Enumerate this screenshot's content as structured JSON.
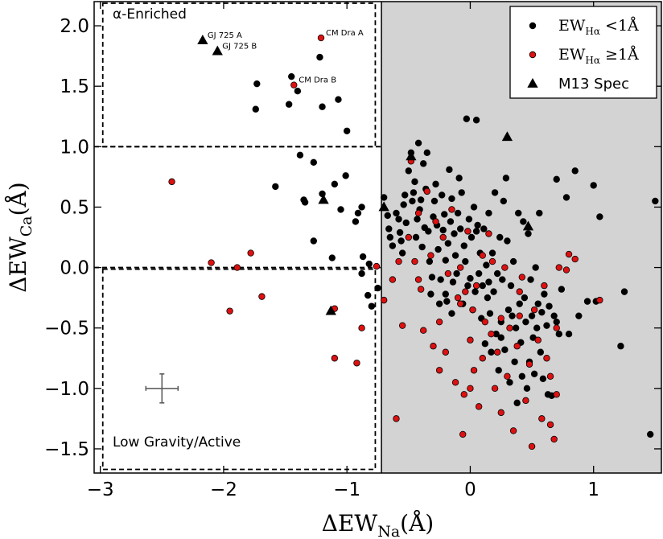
{
  "colors": {
    "inactive": "#000000",
    "active": "#dd1111",
    "shaded_region": "#d3d3d3",
    "frame": "#000000"
  },
  "chart_data": {
    "type": "scatter",
    "xlabel": {
      "main": "ΔEW",
      "sub": "Na",
      "unit": "(Å)"
    },
    "ylabel": {
      "main": "ΔEW",
      "sub": "Ca",
      "unit": "(Å)"
    },
    "xlim": [
      -3.05,
      1.55
    ],
    "ylim": [
      -1.7,
      2.2
    ],
    "xticks": [
      -3,
      -2,
      -1,
      0,
      1
    ],
    "xtick_labels": [
      "−3",
      "−2",
      "−1",
      "0",
      "1"
    ],
    "yticks": [
      -1.5,
      -1.0,
      -0.5,
      0.0,
      0.5,
      1.0,
      1.5,
      2.0
    ],
    "ytick_labels": [
      "−1.5",
      "−1.0",
      "−0.5",
      "0.0",
      "0.5",
      "1.0",
      "1.5",
      "2.0"
    ],
    "shaded_region": {
      "x_min": -0.72
    },
    "boxes": [
      {
        "x": [
          -2.98,
          -0.77
        ],
        "y": [
          1.0,
          2.2
        ]
      },
      {
        "x": [
          -2.98,
          -0.77
        ],
        "y": [
          -1.67,
          0.0
        ]
      }
    ],
    "hlines": [
      1.0,
      0.0
    ],
    "region_labels": [
      {
        "text": "α-Enriched",
        "x": -2.9,
        "y": 2.06
      },
      {
        "text": "Low Gravity/Active",
        "x": -2.9,
        "y": -1.48
      }
    ],
    "error_bar": {
      "x": -2.5,
      "y": -1.0,
      "xerr": 0.15,
      "yerr": 0.12
    },
    "legend": {
      "location": "top-right",
      "entries": [
        {
          "label_main": "EW",
          "label_sub": "Hα",
          "label_rest": " <1Å",
          "marker": "circle",
          "color": "#000000"
        },
        {
          "label_main": "EW",
          "label_sub": "Hα",
          "label_rest": " ≥1Å",
          "marker": "circle",
          "color": "#dd1111"
        },
        {
          "label_main": "M13 Spec",
          "label_sub": "",
          "label_rest": "",
          "marker": "triangle",
          "color": "#000000"
        }
      ]
    },
    "series": [
      {
        "name": "EW_Halpha < 1 A",
        "marker": "circle",
        "color": "#000000",
        "points": [
          [
            -1.22,
            1.74
          ],
          [
            -1.45,
            1.58
          ],
          [
            -1.73,
            1.52
          ],
          [
            -1.4,
            1.46
          ],
          [
            -1.47,
            1.35
          ],
          [
            -1.74,
            1.31
          ],
          [
            -1.2,
            1.33
          ],
          [
            -1.07,
            1.39
          ],
          [
            -1.0,
            1.13
          ],
          [
            -1.27,
            0.87
          ],
          [
            -1.38,
            0.93
          ],
          [
            -1.01,
            0.76
          ],
          [
            -1.1,
            0.69
          ],
          [
            -1.2,
            0.61
          ],
          [
            -1.58,
            0.67
          ],
          [
            -1.35,
            0.56
          ],
          [
            -1.34,
            0.54
          ],
          [
            -1.05,
            0.48
          ],
          [
            -0.88,
            0.5
          ],
          [
            -0.91,
            0.45
          ],
          [
            -0.93,
            0.38
          ],
          [
            -1.27,
            0.22
          ],
          [
            -1.12,
            0.08
          ],
          [
            -0.87,
            0.09
          ],
          [
            -0.82,
            0.03
          ],
          [
            -0.88,
            -0.05
          ],
          [
            -0.83,
            -0.23
          ],
          [
            -0.8,
            -0.32
          ],
          [
            -0.75,
            -0.17
          ],
          [
            -0.7,
            0.58
          ],
          [
            -0.67,
            0.43
          ],
          [
            -0.66,
            0.32
          ],
          [
            -0.65,
            0.25
          ],
          [
            -0.63,
            0.18
          ],
          [
            -0.6,
            0.45
          ],
          [
            -0.58,
            0.4
          ],
          [
            -0.57,
            0.29
          ],
          [
            -0.56,
            0.22
          ],
          [
            -0.55,
            0.12
          ],
          [
            -0.54,
            0.52
          ],
          [
            -0.53,
            0.6
          ],
          [
            -0.52,
            0.37
          ],
          [
            -0.5,
            0.8
          ],
          [
            -0.48,
            0.95
          ],
          [
            -0.47,
            0.55
          ],
          [
            -0.46,
            0.62
          ],
          [
            -0.45,
            0.71
          ],
          [
            -0.44,
            0.25
          ],
          [
            -0.43,
            0.4
          ],
          [
            -0.42,
            1.03
          ],
          [
            -0.41,
            0.48
          ],
          [
            -0.4,
            0.56
          ],
          [
            -0.39,
            0.17
          ],
          [
            -0.38,
            0.86
          ],
          [
            -0.37,
            0.33
          ],
          [
            -0.36,
            0.65
          ],
          [
            -0.35,
            0.95
          ],
          [
            -0.34,
            0.3
          ],
          [
            -0.33,
            0.05
          ],
          [
            -0.32,
            -0.22
          ],
          [
            -0.31,
            -0.08
          ],
          [
            -0.3,
            0.42
          ],
          [
            -0.29,
            0.55
          ],
          [
            -0.28,
            0.69
          ],
          [
            -0.27,
            0.35
          ],
          [
            -0.26,
            0.15
          ],
          [
            -0.25,
            -0.3
          ],
          [
            -0.24,
            -0.1
          ],
          [
            -0.23,
            0.6
          ],
          [
            -0.22,
            0.31
          ],
          [
            -0.21,
            0.44
          ],
          [
            -0.2,
            0.06
          ],
          [
            -0.19,
            -0.28
          ],
          [
            -0.18,
            0.2
          ],
          [
            -0.17,
            0.81
          ],
          [
            -0.16,
            0.38
          ],
          [
            -0.15,
            0.57
          ],
          [
            -0.14,
            -0.12
          ],
          [
            -0.13,
            0.28
          ],
          [
            -0.12,
            0.1
          ],
          [
            -0.11,
            -0.05
          ],
          [
            -0.1,
            0.45
          ],
          [
            -0.09,
            0.74
          ],
          [
            -0.08,
            0.32
          ],
          [
            -0.07,
            0.62
          ],
          [
            -0.06,
            -0.3
          ],
          [
            -0.05,
            0.18
          ],
          [
            -0.04,
            0.05
          ],
          [
            -0.03,
            1.23
          ],
          [
            -0.02,
            -0.15
          ],
          [
            -0.01,
            0.4
          ],
          [
            0.0,
            -0.09
          ],
          [
            0.01,
            0.25
          ],
          [
            0.02,
            -0.35
          ],
          [
            0.03,
            0.5
          ],
          [
            0.04,
            -0.2
          ],
          [
            0.05,
            1.22
          ],
          [
            0.06,
            0.35
          ],
          [
            0.07,
            -0.05
          ],
          [
            0.08,
            0.12
          ],
          [
            0.09,
            -0.42
          ],
          [
            0.1,
            -0.15
          ],
          [
            0.11,
            0.32
          ],
          [
            0.12,
            -0.63
          ],
          [
            0.13,
            0.02
          ],
          [
            0.14,
            -0.25
          ],
          [
            0.15,
            0.45
          ],
          [
            0.16,
            -0.38
          ],
          [
            0.17,
            -0.7
          ],
          [
            0.18,
            0.12
          ],
          [
            0.19,
            -0.2
          ],
          [
            0.2,
            0.62
          ],
          [
            0.21,
            -0.55
          ],
          [
            0.22,
            -0.05
          ],
          [
            0.23,
            -0.85
          ],
          [
            0.24,
            0.25
          ],
          [
            0.25,
            -0.45
          ],
          [
            0.26,
            -0.1
          ],
          [
            0.27,
            0.55
          ],
          [
            0.28,
            -0.68
          ],
          [
            0.29,
            0.74
          ],
          [
            0.3,
            0.22
          ],
          [
            0.31,
            -0.35
          ],
          [
            0.32,
            -0.95
          ],
          [
            0.33,
            -0.15
          ],
          [
            0.34,
            -0.4
          ],
          [
            0.35,
            0.05
          ],
          [
            0.36,
            -0.78
          ],
          [
            0.37,
            -0.5
          ],
          [
            0.38,
            -1.12
          ],
          [
            0.39,
            0.45
          ],
          [
            0.4,
            -0.3
          ],
          [
            0.41,
            -0.62
          ],
          [
            0.42,
            -0.9
          ],
          [
            0.43,
            0.38
          ],
          [
            0.44,
            -0.25
          ],
          [
            0.45,
            -0.45
          ],
          [
            0.46,
            -1.0
          ],
          [
            0.47,
            0.28
          ],
          [
            0.48,
            -0.78
          ],
          [
            0.49,
            -0.1
          ],
          [
            0.5,
            -0.4
          ],
          [
            0.51,
            -0.58
          ],
          [
            0.52,
            -0.88
          ],
          [
            0.53,
            0.0
          ],
          [
            0.54,
            -0.5
          ],
          [
            0.55,
            -0.3
          ],
          [
            0.56,
            0.45
          ],
          [
            0.57,
            -0.7
          ],
          [
            0.58,
            -0.37
          ],
          [
            0.59,
            -0.92
          ],
          [
            0.6,
            -0.22
          ],
          [
            0.62,
            -0.48
          ],
          [
            0.63,
            -1.05
          ],
          [
            0.64,
            -0.32
          ],
          [
            0.66,
            -1.06
          ],
          [
            0.68,
            -0.4
          ],
          [
            0.7,
            0.73
          ],
          [
            0.72,
            -0.55
          ],
          [
            0.74,
            -0.18
          ],
          [
            0.78,
            0.58
          ],
          [
            0.8,
            -0.55
          ],
          [
            0.85,
            0.8
          ],
          [
            0.88,
            -0.4
          ],
          [
            0.95,
            -0.28
          ],
          [
            1.0,
            0.68
          ],
          [
            1.05,
            0.42
          ],
          [
            1.02,
            -0.28
          ],
          [
            1.22,
            -0.65
          ],
          [
            1.25,
            -0.2
          ],
          [
            1.46,
            -1.38
          ],
          [
            1.5,
            0.55
          ],
          [
            0.7,
            -0.45
          ],
          [
            0.15,
            -0.12
          ],
          [
            -0.15,
            -0.38
          ],
          [
            -0.2,
            -0.22
          ],
          [
            0.05,
            0.3
          ],
          [
            0.25,
            -0.58
          ]
        ]
      },
      {
        "name": "EW_Halpha >= 1 A",
        "marker": "circle",
        "color": "#dd1111",
        "points": [
          [
            -1.21,
            1.9
          ],
          [
            -1.43,
            1.51
          ],
          [
            -2.42,
            0.71
          ],
          [
            -2.1,
            0.04
          ],
          [
            -1.89,
            0.0
          ],
          [
            -1.78,
            0.12
          ],
          [
            -1.95,
            -0.36
          ],
          [
            -1.69,
            -0.24
          ],
          [
            -1.1,
            -0.34
          ],
          [
            -1.1,
            -0.75
          ],
          [
            -0.92,
            -0.79
          ],
          [
            -0.88,
            -0.5
          ],
          [
            -0.76,
            0.01
          ],
          [
            -0.7,
            -0.27
          ],
          [
            -0.63,
            -0.1
          ],
          [
            -0.6,
            -1.25
          ],
          [
            -0.58,
            0.05
          ],
          [
            -0.55,
            -0.48
          ],
          [
            -0.5,
            0.25
          ],
          [
            -0.48,
            0.88
          ],
          [
            -0.45,
            0.05
          ],
          [
            -0.42,
            0.45
          ],
          [
            -0.4,
            -0.18
          ],
          [
            -0.38,
            -0.52
          ],
          [
            -0.35,
            0.63
          ],
          [
            -0.32,
            0.1
          ],
          [
            -0.3,
            -0.65
          ],
          [
            -0.28,
            0.38
          ],
          [
            -0.25,
            -0.45
          ],
          [
            -0.22,
            0.25
          ],
          [
            -0.2,
            -0.7
          ],
          [
            -0.18,
            -0.05
          ],
          [
            -0.15,
            0.48
          ],
          [
            -0.12,
            -0.95
          ],
          [
            -0.1,
            -0.25
          ],
          [
            -0.08,
            0.0
          ],
          [
            -0.06,
            -1.38
          ],
          [
            -0.05,
            -1.05
          ],
          [
            -0.04,
            -0.2
          ],
          [
            -0.02,
            0.3
          ],
          [
            0.0,
            -0.6
          ],
          [
            0.02,
            -0.35
          ],
          [
            0.03,
            -0.85
          ],
          [
            0.05,
            -0.15
          ],
          [
            0.07,
            -1.15
          ],
          [
            0.1,
            0.1
          ],
          [
            0.12,
            -0.45
          ],
          [
            0.15,
            0.28
          ],
          [
            0.17,
            -0.55
          ],
          [
            0.2,
            -1.0
          ],
          [
            0.22,
            -0.7
          ],
          [
            0.25,
            -1.2
          ],
          [
            0.28,
            0.0
          ],
          [
            0.3,
            -0.9
          ],
          [
            0.32,
            -0.5
          ],
          [
            0.35,
            -1.35
          ],
          [
            0.38,
            -0.65
          ],
          [
            0.4,
            -0.2
          ],
          [
            0.42,
            -0.08
          ],
          [
            0.45,
            -1.1
          ],
          [
            0.48,
            -0.8
          ],
          [
            0.5,
            -1.48
          ],
          [
            0.52,
            -0.35
          ],
          [
            0.55,
            -0.6
          ],
          [
            0.58,
            -1.25
          ],
          [
            0.6,
            -0.15
          ],
          [
            0.62,
            -0.75
          ],
          [
            0.65,
            -1.3
          ],
          [
            0.68,
            -1.42
          ],
          [
            0.7,
            -0.5
          ],
          [
            0.72,
            0.0
          ],
          [
            0.78,
            -0.02
          ],
          [
            0.8,
            0.11
          ],
          [
            0.85,
            0.07
          ],
          [
            1.05,
            -0.27
          ],
          [
            0.25,
            -0.42
          ],
          [
            -0.25,
            -0.85
          ],
          [
            0.1,
            -0.75
          ],
          [
            0.0,
            -1.0
          ],
          [
            0.7,
            -1.05
          ],
          [
            0.65,
            -0.9
          ],
          [
            0.4,
            -0.4
          ],
          [
            0.18,
            0.05
          ],
          [
            -0.08,
            -0.3
          ],
          [
            -0.42,
            -0.1
          ]
        ]
      },
      {
        "name": "M13 Spec",
        "marker": "triangle",
        "color": "#000000",
        "points": [
          [
            -2.17,
            1.88
          ],
          [
            -2.05,
            1.79
          ],
          [
            -1.19,
            0.56
          ],
          [
            -1.13,
            -0.36
          ],
          [
            -0.48,
            0.92
          ],
          [
            -0.7,
            0.5
          ],
          [
            0.3,
            1.08
          ],
          [
            0.47,
            0.34
          ]
        ]
      }
    ],
    "star_labels": [
      {
        "text": "GJ 725 A",
        "x": -2.17,
        "y": 1.88
      },
      {
        "text": "GJ 725 B",
        "x": -2.05,
        "y": 1.79
      },
      {
        "text": "CM Dra A",
        "x": -1.21,
        "y": 1.9
      },
      {
        "text": "CM Dra B",
        "x": -1.43,
        "y": 1.51
      }
    ]
  }
}
